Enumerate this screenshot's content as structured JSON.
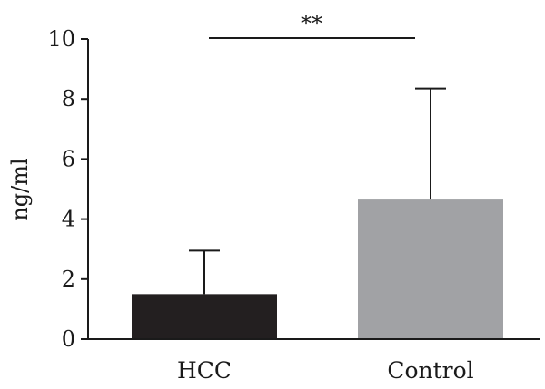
{
  "chart_data": {
    "type": "bar",
    "title": "",
    "xlabel": "",
    "ylabel": "ng/ml",
    "ylim": [
      0,
      10
    ],
    "yticks": [
      0,
      2,
      4,
      6,
      8,
      10
    ],
    "ytick_labels": [
      "0",
      "2",
      "4",
      "6",
      "8",
      "10"
    ],
    "categories": [
      "HCC",
      "Control"
    ],
    "values": [
      1.5,
      4.65
    ],
    "error_upper": [
      2.95,
      8.35
    ],
    "bar_colors": [
      "#231f20",
      "#a1a2a5"
    ],
    "significance": {
      "label": "**",
      "between": [
        "HCC",
        "Control"
      ],
      "y": 10
    },
    "grid": false,
    "legend": "none"
  }
}
